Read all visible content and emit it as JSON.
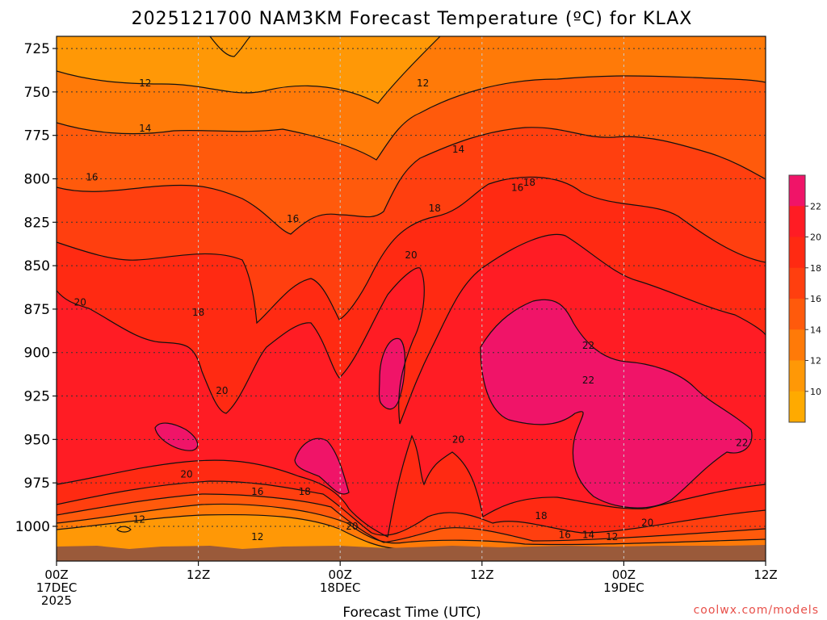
{
  "title": "2025121700 NAM3KM Forecast Temperature (ºC) for KLAX",
  "credit": "coolwx.com/models",
  "chart_data": {
    "type": "heatmap",
    "title": "2025121700 NAM3KM Forecast Temperature (ºC) for KLAX",
    "xlabel": "Forecast Time (UTC)",
    "ylabel": "",
    "x_ticks": [
      {
        "hours": 0,
        "line1": "00Z",
        "line2": "17DEC",
        "line3": "2025"
      },
      {
        "hours": 12,
        "line1": "12Z",
        "line2": "",
        "line3": ""
      },
      {
        "hours": 24,
        "line1": "00Z",
        "line2": "18DEC",
        "line3": ""
      },
      {
        "hours": 36,
        "line1": "12Z",
        "line2": "",
        "line3": ""
      },
      {
        "hours": 48,
        "line1": "00Z",
        "line2": "19DEC",
        "line3": ""
      },
      {
        "hours": 60,
        "line1": "12Z",
        "line2": "",
        "line3": ""
      }
    ],
    "xlim_hours": [
      0,
      60
    ],
    "y_ticks": [
      725,
      750,
      775,
      800,
      825,
      850,
      875,
      900,
      925,
      950,
      975,
      1000
    ],
    "ylim": [
      718,
      1020
    ],
    "y_reversed": true,
    "surface_fill_color": "#9a5a3a",
    "grid": "dotted",
    "legend": {
      "placement": "right",
      "levels": [
        22,
        20,
        18,
        16,
        14,
        12,
        10
      ],
      "colors": [
        "#f01468",
        "#ff1c24",
        "#ff2a12",
        "#ff3f0f",
        "#ff5a0c",
        "#ff7a08",
        "#ff9806",
        "#ffaa00"
      ]
    },
    "contour_levels": [
      12,
      14,
      16,
      18,
      20,
      22
    ],
    "contour_labels": [
      {
        "hours": 7.5,
        "p": 745,
        "text": "12"
      },
      {
        "hours": 31,
        "p": 745,
        "text": "12"
      },
      {
        "hours": 7.5,
        "p": 771,
        "text": "14"
      },
      {
        "hours": 34,
        "p": 783,
        "text": "14"
      },
      {
        "hours": 39,
        "p": 805,
        "text": "16"
      },
      {
        "hours": 3,
        "p": 799,
        "text": "16"
      },
      {
        "hours": 20,
        "p": 823,
        "text": "16"
      },
      {
        "hours": 40,
        "p": 802,
        "text": "18"
      },
      {
        "hours": 32,
        "p": 817,
        "text": "18"
      },
      {
        "hours": 12,
        "p": 877,
        "text": "18"
      },
      {
        "hours": 2,
        "p": 871,
        "text": "20"
      },
      {
        "hours": 30,
        "p": 844,
        "text": "20"
      },
      {
        "hours": 14,
        "p": 922,
        "text": "20"
      },
      {
        "hours": 11,
        "p": 970,
        "text": "20"
      },
      {
        "hours": 34,
        "p": 950,
        "text": "20"
      },
      {
        "hours": 25,
        "p": 1000,
        "text": "20"
      },
      {
        "hours": 50,
        "p": 998,
        "text": "20"
      },
      {
        "hours": 45,
        "p": 896,
        "text": "22"
      },
      {
        "hours": 45,
        "p": 916,
        "text": "22"
      },
      {
        "hours": 58,
        "p": 952,
        "text": "22"
      },
      {
        "hours": 17,
        "p": 980,
        "text": "16"
      },
      {
        "hours": 21,
        "p": 980,
        "text": "18"
      },
      {
        "hours": 41,
        "p": 994,
        "text": "18"
      },
      {
        "hours": 7,
        "p": 996,
        "text": "12"
      },
      {
        "hours": 17,
        "p": 1006,
        "text": "12"
      },
      {
        "hours": 43,
        "p": 1005,
        "text": "16"
      },
      {
        "hours": 45,
        "p": 1005,
        "text": "14"
      },
      {
        "hours": 47,
        "p": 1006,
        "text": "12"
      }
    ]
  }
}
